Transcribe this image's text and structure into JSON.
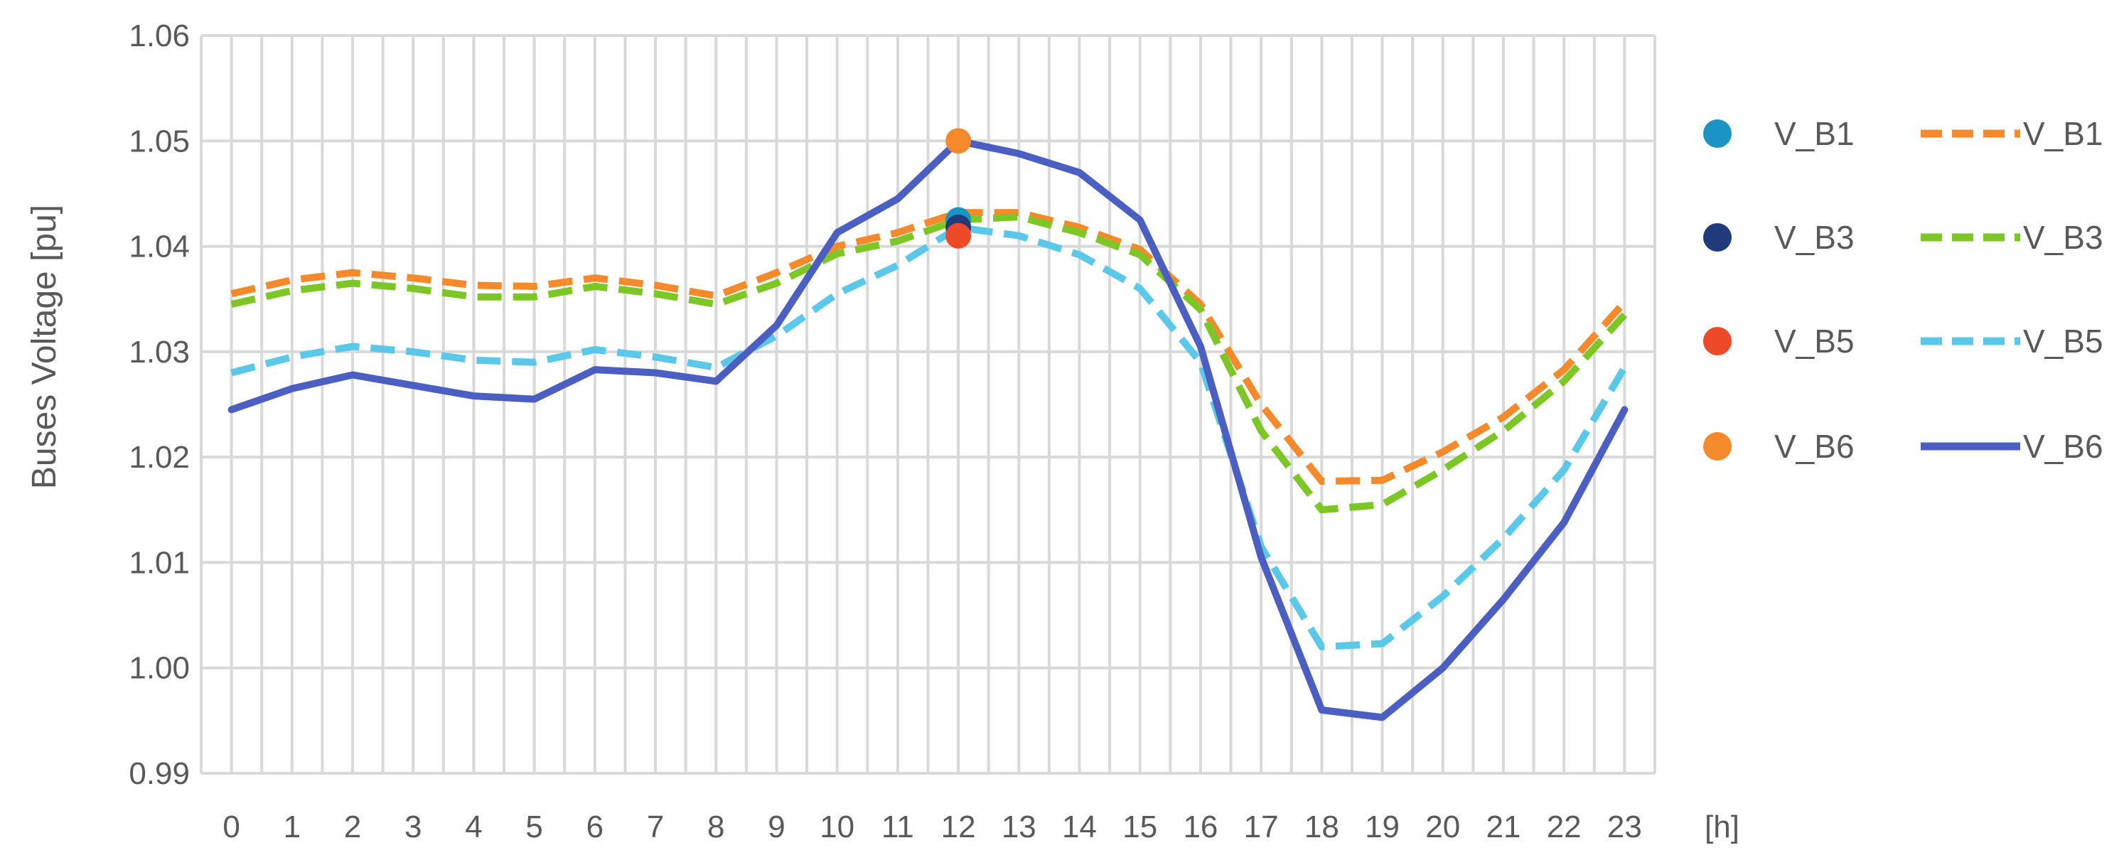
{
  "chart_data": {
    "type": "line",
    "xlabel": "[h]",
    "ylabel": "Buses Voltage [pu]",
    "x": [
      0,
      1,
      2,
      3,
      4,
      5,
      6,
      7,
      8,
      9,
      10,
      11,
      12,
      13,
      14,
      15,
      16,
      17,
      18,
      19,
      20,
      21,
      22,
      23
    ],
    "x_tick_labels": [
      "0",
      "1",
      "2",
      "3",
      "4",
      "5",
      "6",
      "7",
      "8",
      "9",
      "10",
      "11",
      "12",
      "13",
      "14",
      "15",
      "16",
      "17",
      "18",
      "19",
      "20",
      "21",
      "22",
      "23"
    ],
    "ylim": [
      0.99,
      1.06
    ],
    "y_ticks": [
      0.99,
      1.0,
      1.01,
      1.02,
      1.03,
      1.04,
      1.05,
      1.06
    ],
    "y_tick_labels": [
      "0.99",
      "1.00",
      "1.01",
      "1.02",
      "1.03",
      "1.04",
      "1.05",
      "1.06"
    ],
    "grid": true,
    "legend_position": "right",
    "series": [
      {
        "name": "V_B1",
        "kind": "line",
        "style": "dashed",
        "color": "#F58A2C",
        "values": [
          1.0355,
          1.0368,
          1.0375,
          1.037,
          1.0363,
          1.0362,
          1.037,
          1.0363,
          1.0353,
          1.0375,
          1.04,
          1.0413,
          1.0432,
          1.0432,
          1.0418,
          1.0397,
          1.0345,
          1.025,
          1.0177,
          1.0178,
          1.0205,
          1.0238,
          1.0283,
          1.0347
        ]
      },
      {
        "name": "V_B3",
        "kind": "line",
        "style": "dashed",
        "color": "#7CC625",
        "values": [
          1.0345,
          1.0358,
          1.0365,
          1.036,
          1.0352,
          1.0352,
          1.0362,
          1.0355,
          1.0345,
          1.0365,
          1.0393,
          1.0405,
          1.0425,
          1.0428,
          1.0413,
          1.0392,
          1.034,
          1.0225,
          1.015,
          1.0155,
          1.0188,
          1.0225,
          1.0272,
          1.0335
        ]
      },
      {
        "name": "V_B5",
        "kind": "line",
        "style": "dashed",
        "color": "#5BC8EA",
        "values": [
          1.028,
          1.0295,
          1.0305,
          1.03,
          1.0292,
          1.029,
          1.0302,
          1.0295,
          1.0285,
          1.0315,
          1.0355,
          1.0382,
          1.0418,
          1.041,
          1.0392,
          1.036,
          1.029,
          1.0115,
          1.002,
          1.0023,
          1.0068,
          1.0123,
          1.0188,
          1.0285
        ]
      },
      {
        "name": "V_B6",
        "kind": "line",
        "style": "solid",
        "color": "#4A5FC1",
        "values": [
          1.0245,
          1.0265,
          1.0278,
          1.0268,
          1.0258,
          1.0255,
          1.0283,
          1.028,
          1.0272,
          1.0325,
          1.0413,
          1.0445,
          1.05,
          1.0488,
          1.047,
          1.0425,
          1.0305,
          1.0105,
          0.996,
          0.9953,
          1.0,
          1.0065,
          1.0138,
          1.0245
        ]
      },
      {
        "name": "V_B1",
        "kind": "marker",
        "color": "#1B93C4",
        "points": [
          {
            "x": 12,
            "y": 1.0425
          }
        ]
      },
      {
        "name": "V_B3",
        "kind": "marker",
        "color": "#213A7C",
        "points": [
          {
            "x": 12,
            "y": 1.0418
          }
        ]
      },
      {
        "name": "V_B5",
        "kind": "marker",
        "color": "#EE4A2A",
        "points": [
          {
            "x": 12,
            "y": 1.041
          }
        ]
      },
      {
        "name": "V_B6",
        "kind": "marker",
        "color": "#F58A2C",
        "points": [
          {
            "x": 12,
            "y": 1.05
          }
        ]
      }
    ],
    "legend": {
      "markers": [
        {
          "label": "V_B1",
          "color": "#1B93C4"
        },
        {
          "label": "V_B3",
          "color": "#213A7C"
        },
        {
          "label": "V_B5",
          "color": "#EE4A2A"
        },
        {
          "label": "V_B6",
          "color": "#F58A2C"
        }
      ],
      "lines": [
        {
          "label": "V_B1",
          "color": "#F58A2C",
          "style": "dashed"
        },
        {
          "label": "V_B3",
          "color": "#7CC625",
          "style": "dashed"
        },
        {
          "label": "V_B5",
          "color": "#5BC8EA",
          "style": "dashed"
        },
        {
          "label": "V_B6",
          "color": "#4A5FC1",
          "style": "solid"
        }
      ]
    }
  }
}
